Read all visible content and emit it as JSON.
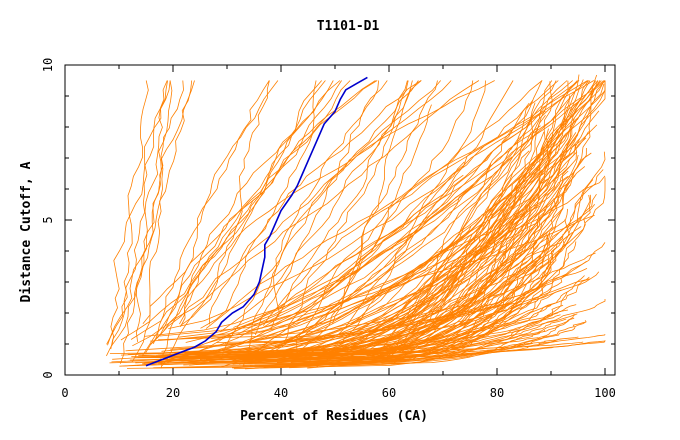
{
  "chart_data": {
    "type": "line",
    "title": "T1101-D1",
    "xlabel": "Percent of Residues (CA)",
    "ylabel": "Distance Cutoff, A",
    "xlim": [
      0,
      100
    ],
    "ylim": [
      0,
      10
    ],
    "xticks": [
      "0",
      "20",
      "40",
      "60",
      "80",
      "100"
    ],
    "yticks": [
      "0",
      "5",
      "10"
    ],
    "grid": false,
    "legend": "none",
    "colors": {
      "models": "#ff8000",
      "highlight": "#0000cc",
      "axes": "#000000"
    },
    "highlight_series": {
      "x": [
        15,
        18,
        21,
        24,
        26,
        28,
        29,
        31,
        33,
        34,
        35,
        36,
        36.5,
        37,
        37,
        38,
        39,
        40,
        42,
        43,
        44,
        45,
        46,
        47,
        48,
        50,
        51,
        52,
        54,
        56
      ],
      "y": [
        0.3,
        0.5,
        0.7,
        0.9,
        1.1,
        1.4,
        1.7,
        2.0,
        2.2,
        2.4,
        2.6,
        3.0,
        3.4,
        3.8,
        4.2,
        4.5,
        4.9,
        5.3,
        5.8,
        6.1,
        6.5,
        6.9,
        7.3,
        7.7,
        8.1,
        8.5,
        8.9,
        9.2,
        9.4,
        9.6
      ]
    }
  }
}
